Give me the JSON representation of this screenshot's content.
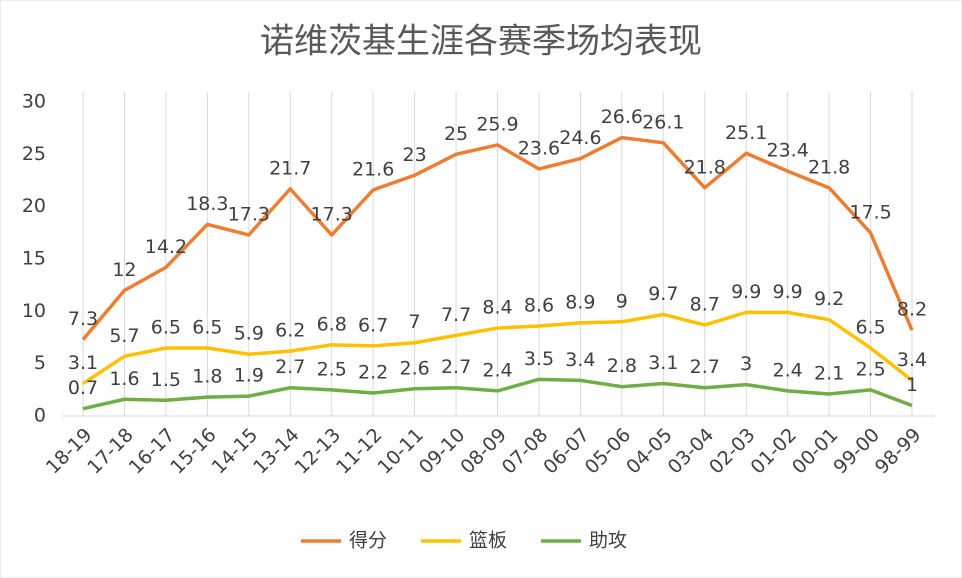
{
  "chart_data": {
    "type": "line",
    "title": "诺维茨基生涯各赛季场均表现",
    "categories": [
      "18-19",
      "17-18",
      "16-17",
      "15-16",
      "14-15",
      "13-14",
      "12-13",
      "11-12",
      "10-11",
      "09-10",
      "08-09",
      "07-08",
      "06-07",
      "05-06",
      "04-05",
      "03-04",
      "02-03",
      "01-02",
      "00-01",
      "99-00",
      "98-99"
    ],
    "series": [
      {
        "name": "得分",
        "color": "#ed7d31",
        "values": [
          7.3,
          12,
          14.2,
          18.3,
          17.3,
          21.7,
          17.3,
          21.6,
          23,
          25,
          25.9,
          23.6,
          24.6,
          26.6,
          26.1,
          21.8,
          25.1,
          23.4,
          21.8,
          17.5,
          8.2
        ]
      },
      {
        "name": "篮板",
        "color": "#ffc000",
        "values": [
          3.1,
          5.7,
          6.5,
          6.5,
          5.9,
          6.2,
          6.8,
          6.7,
          7,
          7.7,
          8.4,
          8.6,
          8.9,
          9,
          9.7,
          8.7,
          9.9,
          9.9,
          9.2,
          6.5,
          3.4
        ]
      },
      {
        "name": "助攻",
        "color": "#70ad47",
        "values": [
          0.7,
          1.6,
          1.5,
          1.8,
          1.9,
          2.7,
          2.5,
          2.2,
          2.6,
          2.7,
          2.4,
          3.5,
          3.4,
          2.8,
          3.1,
          2.7,
          3,
          2.4,
          2.1,
          2.5,
          1
        ]
      }
    ],
    "ylim": [
      0,
      30
    ],
    "yticks": [
      0,
      5,
      10,
      15,
      20,
      25,
      30
    ],
    "grid": "x",
    "legend": "bottom"
  }
}
